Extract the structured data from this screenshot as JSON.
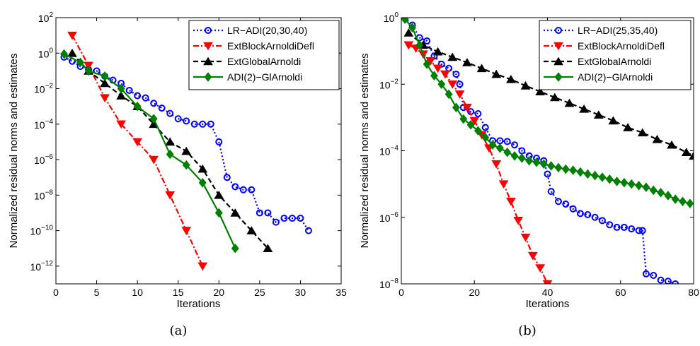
{
  "chart_data": [
    {
      "type": "line",
      "caption": "(a)",
      "xlabel": "Iterations",
      "ylabel": "Normalized residual norms and estimates",
      "xlim": [
        0,
        35
      ],
      "ylim": [
        1e-13,
        100
      ],
      "yscale": "log",
      "xticks": [
        0,
        5,
        10,
        15,
        20,
        25,
        30,
        35
      ],
      "yticks": [
        {
          "value": 1e-12,
          "base": "10",
          "exp": "−12"
        },
        {
          "value": 1e-10,
          "base": "10",
          "exp": "−10"
        },
        {
          "value": 1e-08,
          "base": "10",
          "exp": "−8"
        },
        {
          "value": 1e-06,
          "base": "10",
          "exp": "−6"
        },
        {
          "value": 0.0001,
          "base": "10",
          "exp": "−4"
        },
        {
          "value": 0.01,
          "base": "10",
          "exp": "−2"
        },
        {
          "value": 1,
          "base": "10",
          "exp": "0"
        },
        {
          "value": 100,
          "base": "10",
          "exp": "2"
        }
      ],
      "legend_position": "top-right",
      "series": [
        {
          "name": "LR−ADI(20,30,40)",
          "color": "#0000ff",
          "marker": "circle",
          "dash": "2,3",
          "x": [
            1,
            2,
            3,
            4,
            5,
            6,
            7,
            8,
            9,
            10,
            11,
            12,
            13,
            14,
            15,
            16,
            17,
            18,
            19,
            20,
            21,
            22,
            23,
            24,
            25,
            26,
            27,
            28,
            29,
            30,
            31
          ],
          "y": [
            0.6,
            0.35,
            0.18,
            0.12,
            0.1,
            0.05,
            0.03,
            0.02,
            0.008,
            0.004,
            0.003,
            0.0015,
            0.0008,
            0.0004,
            0.0002,
            0.00015,
            0.0001,
            0.0001,
            0.0001,
            1e-05,
            1e-07,
            3e-08,
            2e-08,
            2e-08,
            1e-09,
            1e-09,
            3e-10,
            5e-10,
            5e-10,
            5e-10,
            1e-10
          ]
        },
        {
          "name": "ExtBlockArnoldiDefl",
          "color": "#ff0000",
          "marker": "triangle-down",
          "dash": "8,3,2,3",
          "x": [
            2,
            4,
            6,
            8,
            10,
            12,
            14,
            16,
            18
          ],
          "y": [
            10,
            0.2,
            0.003,
            0.0001,
            1e-05,
            1e-06,
            1e-08,
            1e-10,
            1e-12
          ]
        },
        {
          "name": "ExtGlobalArnoldi",
          "color": "#000000",
          "marker": "triangle-up",
          "dash": "7,4",
          "x": [
            2,
            4,
            6,
            8,
            10,
            12,
            14,
            16,
            18,
            20,
            22,
            24,
            26
          ],
          "y": [
            1,
            0.1,
            0.02,
            0.004,
            0.001,
            0.0001,
            1e-05,
            3e-06,
            3e-07,
            1e-08,
            1e-09,
            1e-10,
            1e-11
          ]
        },
        {
          "name": "ADI(2)−GlArnoldi",
          "color": "#008000",
          "marker": "diamond",
          "dash": "",
          "x": [
            1,
            3,
            4,
            6,
            8,
            10,
            12,
            14,
            16,
            18,
            20,
            22
          ],
          "y": [
            0.9,
            0.3,
            0.1,
            0.05,
            0.01,
            0.001,
            0.0002,
            2e-06,
            5e-07,
            5e-08,
            1e-09,
            1e-11
          ]
        }
      ]
    },
    {
      "type": "line",
      "caption": "(b)",
      "xlabel": "Iterations",
      "ylabel": "Normalized residual norms and estimates",
      "xlim": [
        0,
        80
      ],
      "ylim": [
        1e-08,
        1
      ],
      "yscale": "log",
      "xticks": [
        0,
        20,
        40,
        60,
        80
      ],
      "yticks": [
        {
          "value": 1e-08,
          "base": "10",
          "exp": "−8"
        },
        {
          "value": 1e-06,
          "base": "10",
          "exp": "−6"
        },
        {
          "value": 0.0001,
          "base": "10",
          "exp": "−4"
        },
        {
          "value": 0.01,
          "base": "10",
          "exp": "−2"
        },
        {
          "value": 1,
          "base": "10",
          "exp": "0"
        }
      ],
      "legend_position": "top-right",
      "series": [
        {
          "name": "LR−ADI(25,35,40)",
          "color": "#0000ff",
          "marker": "circle",
          "dash": "2,3",
          "x": [
            1,
            3,
            5,
            7,
            9,
            11,
            13,
            15,
            16,
            17,
            19,
            21,
            23,
            25,
            27,
            29,
            31,
            33,
            35,
            37,
            39,
            40,
            41,
            43,
            45,
            47,
            49,
            51,
            53,
            55,
            57,
            59,
            61,
            63,
            65,
            66,
            67,
            69,
            71,
            73,
            75
          ],
          "y": [
            1,
            0.6,
            0.25,
            0.2,
            0.07,
            0.04,
            0.03,
            0.02,
            0.01,
            0.002,
            0.0015,
            0.0013,
            0.0005,
            0.0002,
            0.0002,
            0.00019,
            0.00015,
            0.0001,
            7e-05,
            6e-05,
            5e-05,
            2e-05,
            6e-06,
            3e-06,
            2.5e-06,
            1.8e-06,
            1.3e-06,
            1.2e-06,
            1e-06,
            8e-07,
            6e-07,
            5e-07,
            5e-07,
            4.5e-07,
            4e-07,
            4e-07,
            2e-08,
            1.8e-08,
            1.3e-08,
            1.2e-08,
            1e-08
          ]
        },
        {
          "name": "ExtBlockArnoldiDefl",
          "color": "#ff0000",
          "marker": "triangle-down",
          "dash": "8,3,2,3",
          "x": [
            2,
            4,
            6,
            8,
            10,
            12,
            14,
            16,
            18,
            20,
            22,
            24,
            26,
            28,
            30,
            32,
            34,
            36,
            38,
            40,
            42
          ],
          "y": [
            0.15,
            0.12,
            0.08,
            0.05,
            0.03,
            0.02,
            0.01,
            0.005,
            0.002,
            0.0008,
            0.0003,
            0.00012,
            4e-05,
            1e-05,
            3e-06,
            8e-07,
            2.5e-07,
            7e-08,
            3e-08,
            1e-08,
            7e-09
          ]
        },
        {
          "name": "ExtGlobalArnoldi",
          "color": "#000000",
          "marker": "triangle-up",
          "dash": "7,4",
          "x": [
            2,
            6,
            10,
            14,
            18,
            22,
            26,
            30,
            34,
            38,
            42,
            46,
            50,
            54,
            58,
            62,
            66,
            70,
            74,
            78,
            80
          ],
          "y": [
            0.35,
            0.15,
            0.095,
            0.065,
            0.045,
            0.03,
            0.02,
            0.014,
            0.009,
            0.006,
            0.004,
            0.0027,
            0.0018,
            0.0012,
            0.0008,
            0.0005,
            0.00035,
            0.00022,
            0.00015,
            9e-05,
            7e-05
          ]
        },
        {
          "name": "ADI(2)−GlArnoldi",
          "color": "#008000",
          "marker": "diamond",
          "dash": "",
          "x": [
            1,
            3,
            5,
            7,
            9,
            11,
            13,
            15,
            17,
            19,
            21,
            23,
            25,
            27,
            29,
            31,
            33,
            35,
            37,
            39,
            41,
            43,
            45,
            47,
            49,
            51,
            53,
            55,
            57,
            59,
            61,
            63,
            65,
            67,
            69,
            71,
            73,
            75,
            77,
            79
          ],
          "y": [
            0.9,
            0.5,
            0.15,
            0.04,
            0.018,
            0.01,
            0.005,
            0.002,
            0.0009,
            0.0006,
            0.0004,
            0.00025,
            0.00015,
            0.00012,
            9e-05,
            7e-05,
            6e-05,
            5e-05,
            4.5e-05,
            4e-05,
            3.5e-05,
            3.1e-05,
            2.8e-05,
            2.6e-05,
            2.3e-05,
            2e-05,
            1.8e-05,
            1.6e-05,
            1.4e-05,
            1.2e-05,
            1.1e-05,
            1e-05,
            9e-06,
            8e-06,
            6.5e-06,
            5.5e-06,
            4.5e-06,
            3.5e-06,
            3e-06,
            2.6e-06
          ]
        }
      ]
    }
  ]
}
